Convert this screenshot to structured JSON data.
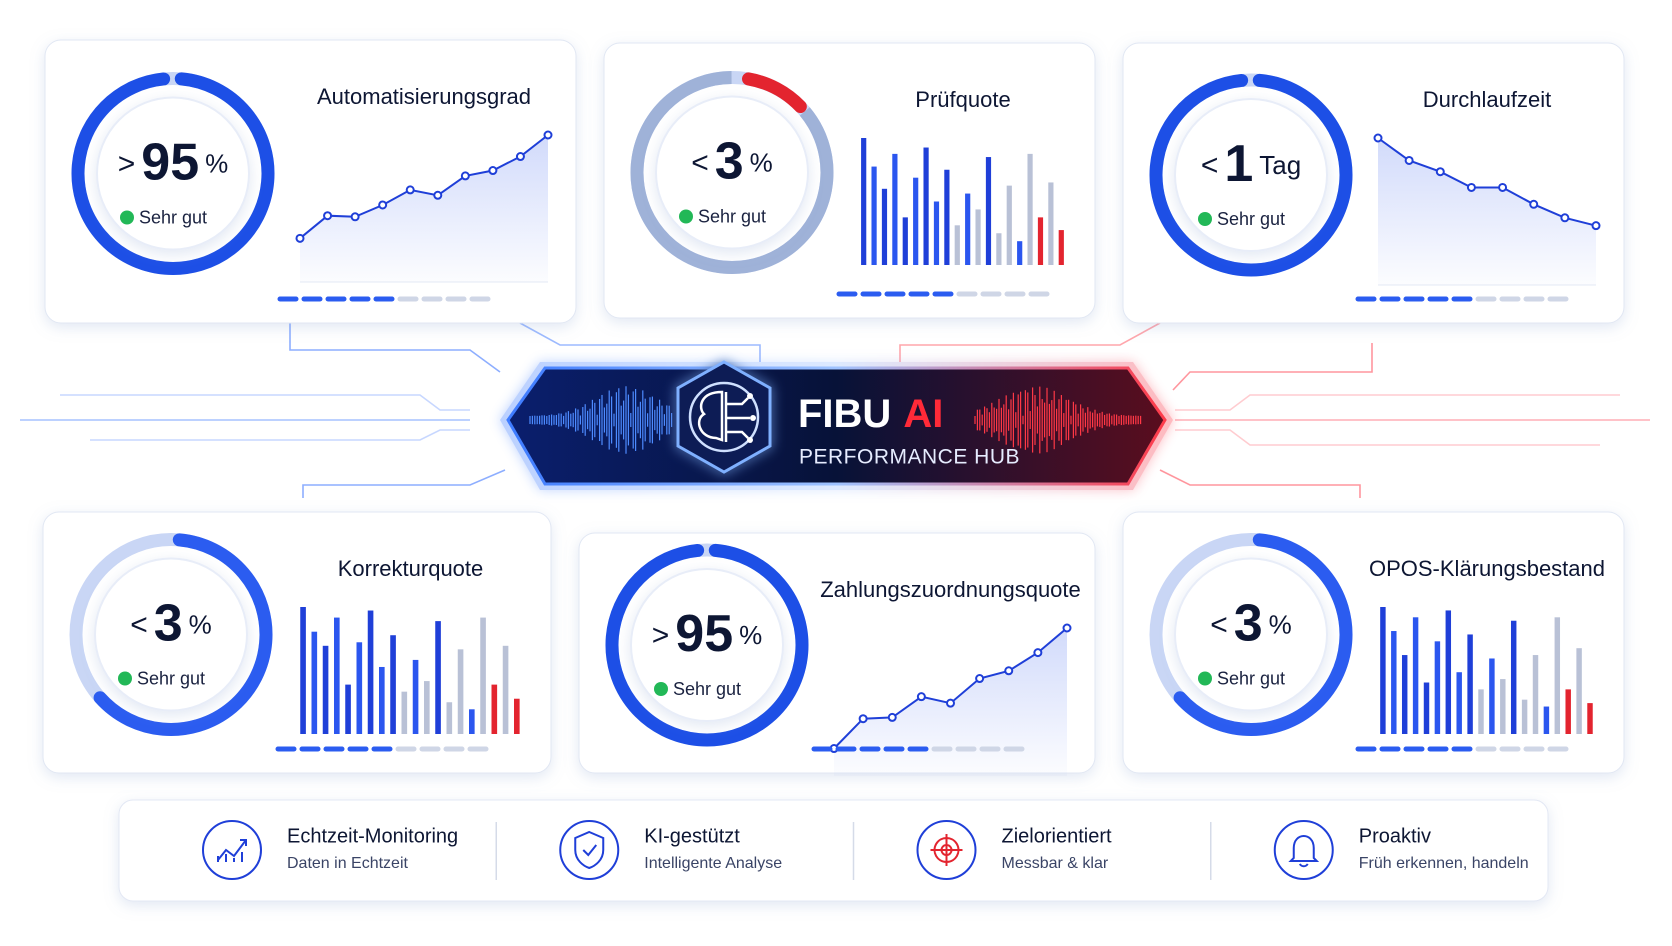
{
  "cards": [
    {
      "title": "Automatisierungsgrad",
      "prefix": ">",
      "value": 95,
      "unit": "%",
      "status": "Sehr gut",
      "chart": {
        "type": "line",
        "values": [
          22,
          43,
          42,
          53,
          67,
          62,
          80,
          85,
          98,
          118
        ]
      }
    },
    {
      "title": "Prüfquote",
      "prefix": "<",
      "value": 3,
      "unit": "%",
      "status": "Sehr gut",
      "chart": {
        "type": "bar",
        "values": [
          80,
          62,
          48,
          70,
          30,
          55,
          74,
          40,
          60,
          25,
          45,
          35,
          68,
          20,
          50,
          15,
          70,
          30,
          52,
          22
        ],
        "colors": [
          "#1f3fd8",
          "#2b56ef",
          "#1f3fd8",
          "#2b56ef",
          "#1f3fd8",
          "#2b56ef",
          "#1f3fd8",
          "#2b56ef",
          "#1f3fd8",
          "#b9c1d6",
          "#2b56ef",
          "#b9c1d6",
          "#1f3fd8",
          "#b9c1d6",
          "#b9c1d6",
          "#2b56ef",
          "#b9c1d6",
          "#e3242f",
          "#b9c1d6",
          "#e3242f"
        ]
      }
    },
    {
      "title": "Durchlaufzeit",
      "prefix": "<",
      "value": 1,
      "unit": "Tag",
      "status": "Sehr gut",
      "chart": {
        "type": "line",
        "values": [
          113,
          93,
          83,
          69,
          69,
          54,
          42,
          35
        ]
      }
    },
    {
      "title": "Korrekturquote",
      "prefix": "<",
      "value": 3,
      "unit": "%",
      "status": "Sehr gut",
      "chart": {
        "type": "bar",
        "values": [
          72,
          58,
          50,
          66,
          28,
          52,
          70,
          38,
          56,
          24,
          42,
          30,
          64,
          18,
          48,
          14,
          66,
          28,
          50,
          20
        ],
        "colors": [
          "#1f3fd8",
          "#2b56ef",
          "#1f3fd8",
          "#2b56ef",
          "#1f3fd8",
          "#2b56ef",
          "#1f3fd8",
          "#2b56ef",
          "#1f3fd8",
          "#b9c1d6",
          "#2b56ef",
          "#b9c1d6",
          "#1f3fd8",
          "#b9c1d6",
          "#b9c1d6",
          "#2b56ef",
          "#b9c1d6",
          "#e3242f",
          "#b9c1d6",
          "#e3242f"
        ]
      }
    },
    {
      "title": "Zahlungszuordnungsquote",
      "prefix": ">",
      "value": 95,
      "unit": "%",
      "status": "Sehr gut",
      "chart": {
        "type": "line",
        "values": [
          5,
          28,
          29,
          45,
          40,
          59,
          65,
          79,
          98
        ]
      }
    },
    {
      "title": "OPOS-Klärungsbestand",
      "prefix": "<",
      "value": 3,
      "unit": "%",
      "status": "Sehr gut",
      "chart": {
        "type": "bar",
        "values": [
          74,
          60,
          46,
          68,
          30,
          54,
          72,
          36,
          58,
          26,
          44,
          32,
          66,
          20,
          46,
          16,
          68,
          26,
          50,
          18
        ],
        "colors": [
          "#1f3fd8",
          "#2b56ef",
          "#1f3fd8",
          "#2b56ef",
          "#1f3fd8",
          "#2b56ef",
          "#1f3fd8",
          "#2b56ef",
          "#1f3fd8",
          "#b9c1d6",
          "#2b56ef",
          "#b9c1d6",
          "#1f3fd8",
          "#b9c1d6",
          "#b9c1d6",
          "#2b56ef",
          "#b9c1d6",
          "#e3242f",
          "#b9c1d6",
          "#e3242f"
        ]
      }
    }
  ],
  "hub": {
    "title": "FIBU",
    "accent": "AI",
    "subtitle": "PERFORMANCE HUB"
  },
  "features": [
    {
      "title": "Echtzeit-Monitoring",
      "subtitle": "Daten in Echtzeit"
    },
    {
      "title": "KI-gestützt",
      "subtitle": "Intelligente Analyse"
    },
    {
      "title": "Zielorientiert",
      "subtitle": "Messbar & klar"
    },
    {
      "title": "Proaktiv",
      "subtitle": "Früh erkennen, handeln"
    }
  ]
}
